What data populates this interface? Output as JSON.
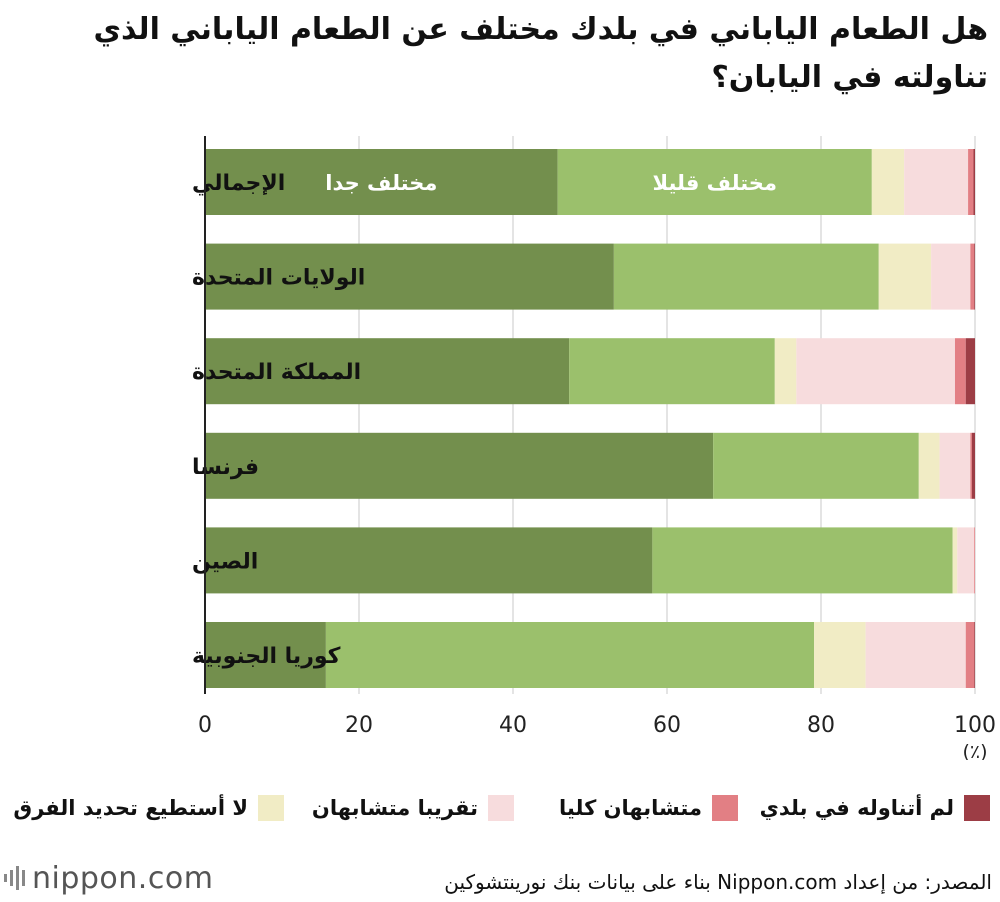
{
  "title": "هل الطعام الياباني في بلدك مختلف عن الطعام الياباني الذي تناولته في اليابان؟",
  "chart_data": {
    "type": "bar",
    "orientation": "horizontal",
    "stacked": true,
    "categories": [
      "الإجمالي",
      "الولايات المتحدة",
      "المملكة المتحدة",
      "فرنسا",
      "الصين",
      "كوريا الجنوبية"
    ],
    "series": [
      {
        "name": "مختلف جدا",
        "color": "#738f4d",
        "values": [
          45.8,
          53.1,
          47.3,
          66.0,
          58.1,
          15.7
        ]
      },
      {
        "name": "مختلف قليلا",
        "color": "#9bc06c",
        "values": [
          40.8,
          34.4,
          26.7,
          26.7,
          39.0,
          63.4
        ]
      },
      {
        "name": "لا أستطيع تحديد الفرق",
        "color": "#f1ecc5",
        "values": [
          4.2,
          6.8,
          2.8,
          2.7,
          0.6,
          6.7
        ]
      },
      {
        "name": "تقريبا متشابهان",
        "color": "#f7dcdd",
        "values": [
          8.3,
          5.1,
          20.6,
          4.0,
          2.2,
          13.0
        ]
      },
      {
        "name": "متشابهان كليا",
        "color": "#e27f84",
        "values": [
          0.7,
          0.5,
          1.4,
          0.2,
          0.1,
          1.1
        ]
      },
      {
        "name": "لم أتناوله في بلدي",
        "color": "#9c3d45",
        "values": [
          0.2,
          0.1,
          1.2,
          0.4,
          0.0,
          0.1
        ]
      }
    ],
    "bar_labels": {
      "very_different": "مختلف جدا",
      "slightly_different": "مختلف قليلا"
    },
    "xlim": [
      0,
      100
    ],
    "xticks": [
      0,
      20,
      40,
      60,
      80,
      100
    ],
    "unit_label": "(٪)",
    "grid": true,
    "legend_placement": "bottom"
  },
  "legend": [
    {
      "label": "لم أتناوله في بلدي",
      "color": "#9c3d45"
    },
    {
      "label": "متشابهان كليا",
      "color": "#e27f84"
    },
    {
      "label": "تقريبا متشابهان",
      "color": "#f7dcdd"
    },
    {
      "label": "لا أستطيع تحديد الفرق",
      "color": "#f1ecc5"
    }
  ],
  "brand": "nippon.com",
  "source": "المصدر: من إعداد Nippon.com بناء على بيانات بنك نورينتشوكين"
}
